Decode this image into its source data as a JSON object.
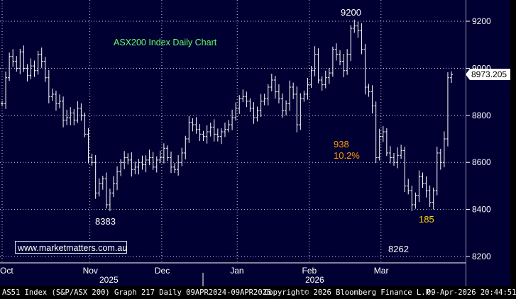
{
  "chart_data": {
    "type": "ohlc",
    "title": "ASX200 Index Daily Chart",
    "y_ticks": [
      8200,
      8400,
      8600,
      8800,
      9000,
      9200
    ],
    "ylim": [
      8175,
      9295
    ],
    "x_ticks": [
      "Oct",
      "Nov",
      "Dec",
      "Jan",
      "Feb",
      "Mar"
    ],
    "year_labels": [
      "2025",
      "2026"
    ],
    "grid": true,
    "last_value": "8973.205",
    "annotations": [
      {
        "text": "9200",
        "color": "#ffffff"
      },
      {
        "text": "8383",
        "color": "#ffffff"
      },
      {
        "text": "8262",
        "color": "#ffffff"
      },
      {
        "text": "938",
        "color": "#ff9900"
      },
      {
        "text": "10.2%",
        "color": "#ff9900"
      },
      {
        "text": "185",
        "color": "#ffd700"
      }
    ],
    "series": [
      {
        "date": "Sep 29",
        "value": 8850
      },
      {
        "date": "Sep 30",
        "value": 8960
      },
      {
        "date": "Oct 01",
        "value": 9050
      },
      {
        "date": "Oct 02",
        "value": 9030
      },
      {
        "date": "Oct 03",
        "value": 9000
      },
      {
        "date": "Oct 06",
        "value": 9070
      },
      {
        "date": "Oct 07",
        "value": 9000
      },
      {
        "date": "Oct 08",
        "value": 8970
      },
      {
        "date": "Oct 09",
        "value": 9010
      },
      {
        "date": "Oct 10",
        "value": 8990
      },
      {
        "date": "Oct 13",
        "value": 9060
      },
      {
        "date": "Oct 14",
        "value": 9030
      },
      {
        "date": "Oct 15",
        "value": 8960
      },
      {
        "date": "Oct 16",
        "value": 8880
      },
      {
        "date": "Oct 17",
        "value": 8890
      },
      {
        "date": "Oct 20",
        "value": 8850
      },
      {
        "date": "Oct 21",
        "value": 8860
      },
      {
        "date": "Oct 22",
        "value": 8780
      },
      {
        "date": "Oct 23",
        "value": 8790
      },
      {
        "date": "Oct 24",
        "value": 8810
      },
      {
        "date": "Oct 27",
        "value": 8780
      },
      {
        "date": "Oct 28",
        "value": 8830
      },
      {
        "date": "Oct 29",
        "value": 8800
      },
      {
        "date": "Oct 30",
        "value": 8720
      },
      {
        "date": "Oct 31",
        "value": 8620
      },
      {
        "date": "Nov 03",
        "value": 8600
      },
      {
        "date": "Nov 04",
        "value": 8470
      },
      {
        "date": "Nov 05",
        "value": 8510
      },
      {
        "date": "Nov 06",
        "value": 8530
      },
      {
        "date": "Nov 07",
        "value": 8420
      },
      {
        "date": "Nov 10",
        "value": 8470
      },
      {
        "date": "Nov 11",
        "value": 8510
      },
      {
        "date": "Nov 12",
        "value": 8560
      },
      {
        "date": "Nov 13",
        "value": 8600
      },
      {
        "date": "Nov 14",
        "value": 8620
      },
      {
        "date": "Nov 17",
        "value": 8610
      },
      {
        "date": "Nov 18",
        "value": 8570
      },
      {
        "date": "Nov 19",
        "value": 8580
      },
      {
        "date": "Nov 20",
        "value": 8600
      },
      {
        "date": "Nov 21",
        "value": 8590
      },
      {
        "date": "Nov 24",
        "value": 8610
      },
      {
        "date": "Nov 25",
        "value": 8620
      },
      {
        "date": "Nov 26",
        "value": 8580
      },
      {
        "date": "Nov 27",
        "value": 8610
      },
      {
        "date": "Nov 28",
        "value": 8620
      },
      {
        "date": "Dec 01",
        "value": 8660
      },
      {
        "date": "Dec 02",
        "value": 8620
      },
      {
        "date": "Dec 03",
        "value": 8580
      },
      {
        "date": "Dec 04",
        "value": 8570
      },
      {
        "date": "Dec 05",
        "value": 8600
      },
      {
        "date": "Dec 08",
        "value": 8640
      },
      {
        "date": "Dec 09",
        "value": 8700
      },
      {
        "date": "Dec 10",
        "value": 8770
      },
      {
        "date": "Dec 11",
        "value": 8760
      },
      {
        "date": "Dec 12",
        "value": 8740
      },
      {
        "date": "Dec 15",
        "value": 8720
      },
      {
        "date": "Dec 16",
        "value": 8710
      },
      {
        "date": "Dec 17",
        "value": 8730
      },
      {
        "date": "Dec 18",
        "value": 8750
      },
      {
        "date": "Dec 19",
        "value": 8720
      },
      {
        "date": "Dec 22",
        "value": 8710
      },
      {
        "date": "Dec 23",
        "value": 8730
      },
      {
        "date": "Dec 24",
        "value": 8740
      },
      {
        "date": "Dec 29",
        "value": 8760
      },
      {
        "date": "Dec 30",
        "value": 8790
      },
      {
        "date": "Dec 31",
        "value": 8830
      },
      {
        "date": "Jan 02",
        "value": 8870
      },
      {
        "date": "Jan 05",
        "value": 8880
      },
      {
        "date": "Jan 06",
        "value": 8860
      },
      {
        "date": "Jan 07",
        "value": 8830
      },
      {
        "date": "Jan 08",
        "value": 8790
      },
      {
        "date": "Jan 09",
        "value": 8820
      },
      {
        "date": "Jan 12",
        "value": 8860
      },
      {
        "date": "Jan 13",
        "value": 8870
      },
      {
        "date": "Jan 14",
        "value": 8920
      },
      {
        "date": "Jan 15",
        "value": 8950
      },
      {
        "date": "Jan 16",
        "value": 8900
      },
      {
        "date": "Jan 19",
        "value": 8870
      },
      {
        "date": "Jan 20",
        "value": 8820
      },
      {
        "date": "Jan 21",
        "value": 8850
      },
      {
        "date": "Jan 22",
        "value": 8920
      },
      {
        "date": "Jan 23",
        "value": 8890
      },
      {
        "date": "Jan 27",
        "value": 8760
      },
      {
        "date": "Jan 28",
        "value": 8870
      },
      {
        "date": "Jan 29",
        "value": 8890
      },
      {
        "date": "Jan 30",
        "value": 8930
      },
      {
        "date": "Feb 02",
        "value": 8990
      },
      {
        "date": "Feb 03",
        "value": 9060
      },
      {
        "date": "Feb 04",
        "value": 8950
      },
      {
        "date": "Feb 05",
        "value": 8930
      },
      {
        "date": "Feb 06",
        "value": 8960
      },
      {
        "date": "Feb 09",
        "value": 8980
      },
      {
        "date": "Feb 10",
        "value": 9080
      },
      {
        "date": "Feb 11",
        "value": 9060
      },
      {
        "date": "Feb 12",
        "value": 9030
      },
      {
        "date": "Feb 13",
        "value": 8990
      },
      {
        "date": "Feb 16",
        "value": 9060
      },
      {
        "date": "Feb 17",
        "value": 9170
      },
      {
        "date": "Feb 18",
        "value": 9180
      },
      {
        "date": "Feb 19",
        "value": 9160
      },
      {
        "date": "Feb 20",
        "value": 9080
      },
      {
        "date": "Feb 23",
        "value": 8920
      },
      {
        "date": "Feb 24",
        "value": 8900
      },
      {
        "date": "Feb 25",
        "value": 8840
      },
      {
        "date": "Feb 26",
        "value": 8620
      },
      {
        "date": "Feb 27",
        "value": 8710
      },
      {
        "date": "Mar 02",
        "value": 8730
      },
      {
        "date": "Mar 03",
        "value": 8640
      },
      {
        "date": "Mar 04",
        "value": 8620
      },
      {
        "date": "Mar 05",
        "value": 8600
      },
      {
        "date": "Mar 06",
        "value": 8630
      },
      {
        "date": "Mar 09",
        "value": 8650
      },
      {
        "date": "Mar 10",
        "value": 8500
      },
      {
        "date": "Mar 11",
        "value": 8480
      },
      {
        "date": "Mar 12",
        "value": 8420
      },
      {
        "date": "Mar 13",
        "value": 8460
      },
      {
        "date": "Mar 16",
        "value": 8540
      },
      {
        "date": "Mar 17",
        "value": 8510
      },
      {
        "date": "Mar 18",
        "value": 8480
      },
      {
        "date": "Mar 19",
        "value": 8430
      },
      {
        "date": "Mar 20",
        "value": 8480
      },
      {
        "date": "Mar 23",
        "value": 8640
      },
      {
        "date": "Mar 24",
        "value": 8600
      },
      {
        "date": "Mar 25",
        "value": 8700
      },
      {
        "date": "Mar 26",
        "value": 8960
      },
      {
        "date": "Mar 27",
        "value": 8973.205
      }
    ]
  },
  "footer": {
    "left": "AS51 Index (S&P/ASX 200) Graph 217 Daily 09APR2024-09APR2026",
    "center": "Copyright© 2026 Bloomberg Finance L.P.",
    "right": "09-Apr-2026 20:44:51"
  },
  "website": "www.marketmatters.com.au",
  "colors": {
    "background": "#000033",
    "grid": "#cfd6e8",
    "bars": "#ffffff",
    "title": "#66ff66",
    "orange": "#ff9900",
    "yellow": "#ffd700"
  }
}
